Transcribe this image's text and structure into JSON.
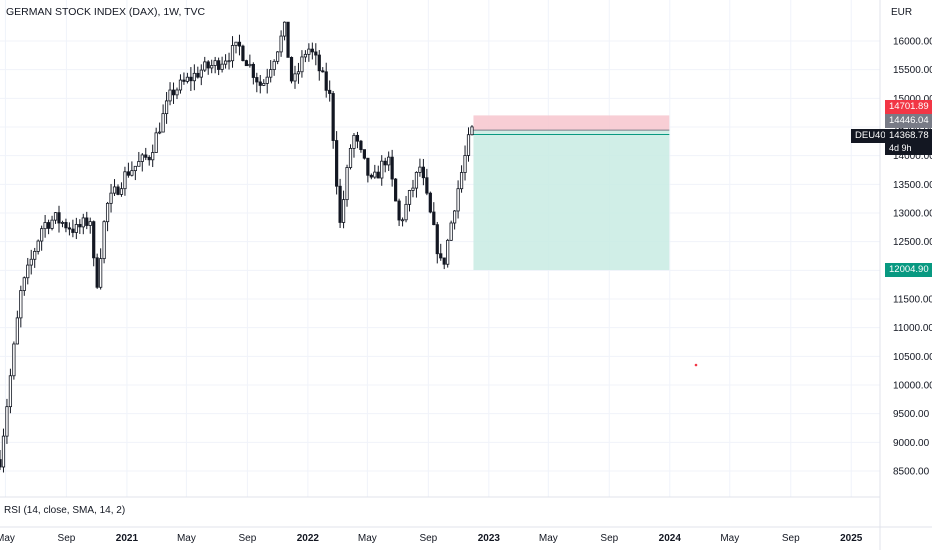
{
  "header": {
    "title": "GERMAN STOCK INDEX (DAX), 1W, TVC",
    "currency": "EUR"
  },
  "indicator": {
    "label": "RSI (14, close, SMA, 14, 2)"
  },
  "price_tags": {
    "stop": "14701.89",
    "entry": "14446.04",
    "symbol": "DEU40",
    "last": "14368.78",
    "countdown": "4d 9h",
    "target": "12004.90"
  },
  "colors": {
    "up": "#131722",
    "down": "#131722",
    "stop_zone": "#f7c6ce",
    "target_zone": "#c8ebe3",
    "stop_tag": "#f23645",
    "target_tag": "#089981",
    "entry_tag": "#787b86",
    "last_tag": "#131722"
  },
  "chart_data": {
    "type": "candlestick",
    "title": "GERMAN STOCK INDEX (DAX), 1W, TVC",
    "y_axis_unit": "EUR",
    "ylim": [
      8200,
      16800
    ],
    "y_ticks": [
      8500,
      9000,
      9500,
      10000,
      10500,
      11000,
      11500,
      12000,
      12500,
      13000,
      13500,
      14000,
      14500,
      15000,
      15500,
      16000
    ],
    "y_tick_labels": [
      "8500.00",
      "9000.00",
      "9500.00",
      "10000.00",
      "10500.00",
      "11000.00",
      "11500.00",
      "12000.00",
      "12500.00",
      "13000.00",
      "13500.00",
      "14000.00",
      "14500.00",
      "15000.00",
      "15500.00",
      "16000.00"
    ],
    "x_range": [
      "2020-04-20",
      "2025-02-28"
    ],
    "x_ticks": [
      {
        "date": "2020-05-01",
        "label": "May"
      },
      {
        "date": "2020-09-01",
        "label": "Sep"
      },
      {
        "date": "2021-01-01",
        "label": "2021"
      },
      {
        "date": "2021-05-01",
        "label": "May"
      },
      {
        "date": "2021-09-01",
        "label": "Sep"
      },
      {
        "date": "2022-01-01",
        "label": "2022"
      },
      {
        "date": "2022-05-01",
        "label": "May"
      },
      {
        "date": "2022-09-01",
        "label": "Sep"
      },
      {
        "date": "2023-01-01",
        "label": "2023"
      },
      {
        "date": "2023-05-01",
        "label": "May"
      },
      {
        "date": "2023-09-01",
        "label": "Sep"
      },
      {
        "date": "2024-01-01",
        "label": "2024"
      },
      {
        "date": "2024-05-01",
        "label": "May"
      },
      {
        "date": "2024-09-01",
        "label": "Sep"
      },
      {
        "date": "2025-01-01",
        "label": "2025"
      }
    ],
    "waypoints": [
      [
        "2020-04-20",
        8700
      ],
      [
        "2020-06-01",
        11600
      ],
      [
        "2020-07-15",
        12800
      ],
      [
        "2020-08-10",
        12900
      ],
      [
        "2020-09-20",
        12700
      ],
      [
        "2020-10-20",
        12900
      ],
      [
        "2020-10-30",
        11600
      ],
      [
        "2020-11-20",
        13100
      ],
      [
        "2020-12-31",
        13700
      ],
      [
        "2021-02-15",
        14000
      ],
      [
        "2021-04-01",
        15100
      ],
      [
        "2021-06-01",
        15500
      ],
      [
        "2021-07-01",
        15600
      ],
      [
        "2021-08-15",
        15900
      ],
      [
        "2021-09-30",
        15200
      ],
      [
        "2021-11-15",
        16200
      ],
      [
        "2021-12-01",
        15200
      ],
      [
        "2021-12-31",
        15900
      ],
      [
        "2022-01-15",
        15700
      ],
      [
        "2022-02-15",
        15000
      ],
      [
        "2022-03-07",
        12800
      ],
      [
        "2022-04-01",
        14400
      ],
      [
        "2022-05-10",
        13500
      ],
      [
        "2022-06-10",
        14000
      ],
      [
        "2022-07-05",
        12800
      ],
      [
        "2022-08-15",
        13800
      ],
      [
        "2022-09-29",
        12000
      ],
      [
        "2022-10-25",
        13200
      ],
      [
        "2022-11-25",
        14400
      ],
      [
        "2022-12-01",
        14446
      ]
    ],
    "series": [
      {
        "type": "position",
        "entry_date": "2022-12-01",
        "end_date": "2023-12-31",
        "entry": 14446.04,
        "stop": 14701.89,
        "target": 12004.9
      }
    ],
    "last_price": 14368.78,
    "grid": true
  }
}
